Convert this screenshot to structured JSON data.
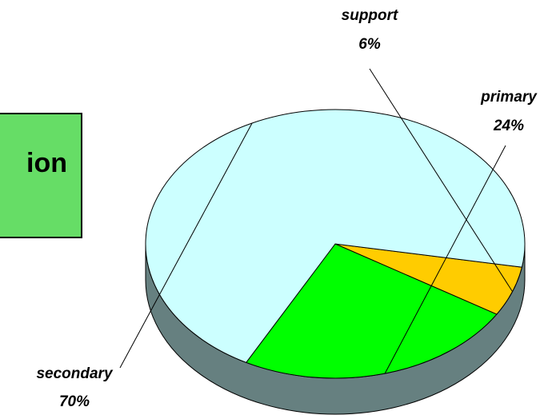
{
  "title_box": {
    "text": "ion",
    "background": "#66dd66"
  },
  "chart_data": {
    "type": "pie",
    "three_d": true,
    "slices": [
      {
        "label": "support",
        "value": 6,
        "value_label": "6%",
        "color": "#ffcc00"
      },
      {
        "label": "primary",
        "value": 24,
        "value_label": "24%",
        "color": "#00ff00"
      },
      {
        "label": "secondary",
        "value": 70,
        "value_label": "70%",
        "color": "#ccffff"
      }
    ],
    "side_color": "#668080",
    "outline_color": "#000000"
  }
}
